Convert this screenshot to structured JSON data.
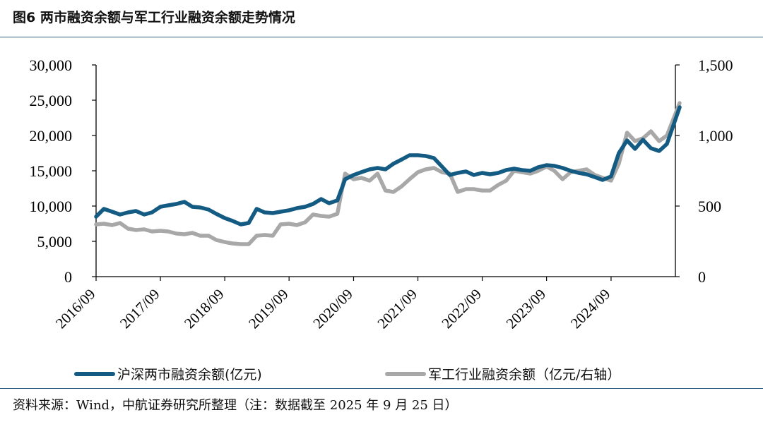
{
  "figure": {
    "title": "图6  两市融资余额与军工行业融资余额走势情况",
    "source": "资料来源：Wind，中航证券研究所整理（注：数据截至 2025 年 9 月 25 日）"
  },
  "chart_data": {
    "type": "line",
    "x_tick_labels": [
      "2016/09",
      "2017/09",
      "2018/09",
      "2019/09",
      "2020/09",
      "2021/09",
      "2022/09",
      "2023/09",
      "2024/09"
    ],
    "x_range": [
      "2016/09",
      "2025/09"
    ],
    "left_axis": {
      "ylim": [
        0,
        30000
      ],
      "tick_values": [
        0,
        5000,
        10000,
        15000,
        20000,
        25000,
        30000
      ],
      "tick_labels": [
        "0",
        "5,000",
        "10,000",
        "15,000",
        "20,000",
        "25,000",
        "30,000"
      ]
    },
    "right_axis": {
      "ylim": [
        0,
        1500
      ],
      "tick_values": [
        0,
        500,
        1000,
        1500
      ],
      "tick_labels": [
        "0",
        "500",
        "1,000",
        "1,500"
      ]
    },
    "grid": false,
    "legend_position": "bottom",
    "series": [
      {
        "name": "沪深两市融资余额(亿元)",
        "axis": "left",
        "color": "#135b82",
        "x": [
          "2016-09-01",
          "2016-10-15",
          "2016-12-01",
          "2017-01-15",
          "2017-03-01",
          "2017-04-15",
          "2017-06-01",
          "2017-07-15",
          "2017-09-01",
          "2017-10-15",
          "2017-12-01",
          "2018-01-15",
          "2018-03-01",
          "2018-04-15",
          "2018-06-01",
          "2018-07-15",
          "2018-09-01",
          "2018-10-15",
          "2018-12-01",
          "2019-01-15",
          "2019-03-01",
          "2019-04-15",
          "2019-06-01",
          "2019-07-15",
          "2019-09-01",
          "2019-10-15",
          "2019-12-01",
          "2020-01-15",
          "2020-03-01",
          "2020-04-15",
          "2020-06-01",
          "2020-07-15",
          "2020-09-01",
          "2020-10-15",
          "2020-12-01",
          "2021-01-15",
          "2021-03-01",
          "2021-04-15",
          "2021-06-01",
          "2021-07-15",
          "2021-09-01",
          "2021-10-15",
          "2021-12-01",
          "2022-01-15",
          "2022-03-01",
          "2022-04-15",
          "2022-06-01",
          "2022-07-15",
          "2022-09-01",
          "2022-10-15",
          "2022-12-01",
          "2023-01-15",
          "2023-03-01",
          "2023-04-15",
          "2023-06-01",
          "2023-07-15",
          "2023-09-01",
          "2023-10-15",
          "2023-12-01",
          "2024-01-15",
          "2024-03-01",
          "2024-04-15",
          "2024-06-01",
          "2024-07-15",
          "2024-09-01",
          "2024-10-15",
          "2024-12-01",
          "2025-01-15",
          "2025-03-01",
          "2025-04-15",
          "2025-06-01",
          "2025-07-15",
          "2025-09-25"
        ],
        "values": [
          8500,
          9600,
          9200,
          8800,
          9100,
          9300,
          8800,
          9100,
          9900,
          10100,
          10300,
          10600,
          9900,
          9800,
          9500,
          8900,
          8300,
          7900,
          7400,
          7600,
          9600,
          9100,
          9000,
          9200,
          9400,
          9700,
          9900,
          10300,
          11000,
          10400,
          10800,
          13800,
          14400,
          14800,
          15200,
          15400,
          15200,
          16000,
          16600,
          17200,
          17200,
          17100,
          16800,
          15600,
          14400,
          14700,
          14900,
          14400,
          14700,
          14500,
          14700,
          15100,
          15300,
          15100,
          15000,
          15500,
          15800,
          15700,
          15400,
          15000,
          14700,
          14500,
          14100,
          13700,
          14200,
          17500,
          19300,
          18100,
          19400,
          18200,
          17800,
          18800,
          24000
        ]
      },
      {
        "name": "军工行业融资余额（亿元/右轴）",
        "axis": "right",
        "color": "#a8a8a8",
        "x": [
          "2016-09-01",
          "2016-10-15",
          "2016-12-01",
          "2017-01-15",
          "2017-03-01",
          "2017-04-15",
          "2017-06-01",
          "2017-07-15",
          "2017-09-01",
          "2017-10-15",
          "2017-12-01",
          "2018-01-15",
          "2018-03-01",
          "2018-04-15",
          "2018-06-01",
          "2018-07-15",
          "2018-09-01",
          "2018-10-15",
          "2018-12-01",
          "2019-01-15",
          "2019-03-01",
          "2019-04-15",
          "2019-06-01",
          "2019-07-15",
          "2019-09-01",
          "2019-10-15",
          "2019-12-01",
          "2020-01-15",
          "2020-03-01",
          "2020-04-15",
          "2020-06-01",
          "2020-07-15",
          "2020-09-01",
          "2020-10-15",
          "2020-12-01",
          "2021-01-15",
          "2021-03-01",
          "2021-04-15",
          "2021-06-01",
          "2021-07-15",
          "2021-09-01",
          "2021-10-15",
          "2021-12-01",
          "2022-01-15",
          "2022-03-01",
          "2022-04-15",
          "2022-06-01",
          "2022-07-15",
          "2022-09-01",
          "2022-10-15",
          "2022-12-01",
          "2023-01-15",
          "2023-03-01",
          "2023-04-15",
          "2023-06-01",
          "2023-07-15",
          "2023-09-01",
          "2023-10-15",
          "2023-12-01",
          "2024-01-15",
          "2024-03-01",
          "2024-04-15",
          "2024-06-01",
          "2024-07-15",
          "2024-09-01",
          "2024-10-15",
          "2024-12-01",
          "2025-01-15",
          "2025-03-01",
          "2025-04-15",
          "2025-06-01",
          "2025-07-15",
          "2025-09-25"
        ],
        "values": [
          370,
          375,
          365,
          380,
          340,
          330,
          335,
          320,
          325,
          320,
          305,
          300,
          310,
          290,
          290,
          260,
          245,
          235,
          230,
          230,
          290,
          295,
          290,
          370,
          375,
          365,
          385,
          440,
          430,
          425,
          445,
          730,
          690,
          700,
          680,
          730,
          610,
          600,
          640,
          690,
          740,
          760,
          770,
          740,
          730,
          600,
          620,
          620,
          610,
          610,
          650,
          680,
          750,
          740,
          730,
          750,
          780,
          750,
          690,
          740,
          750,
          760,
          720,
          700,
          680,
          800,
          1020,
          960,
          980,
          1030,
          960,
          1000,
          1230
        ]
      }
    ]
  }
}
